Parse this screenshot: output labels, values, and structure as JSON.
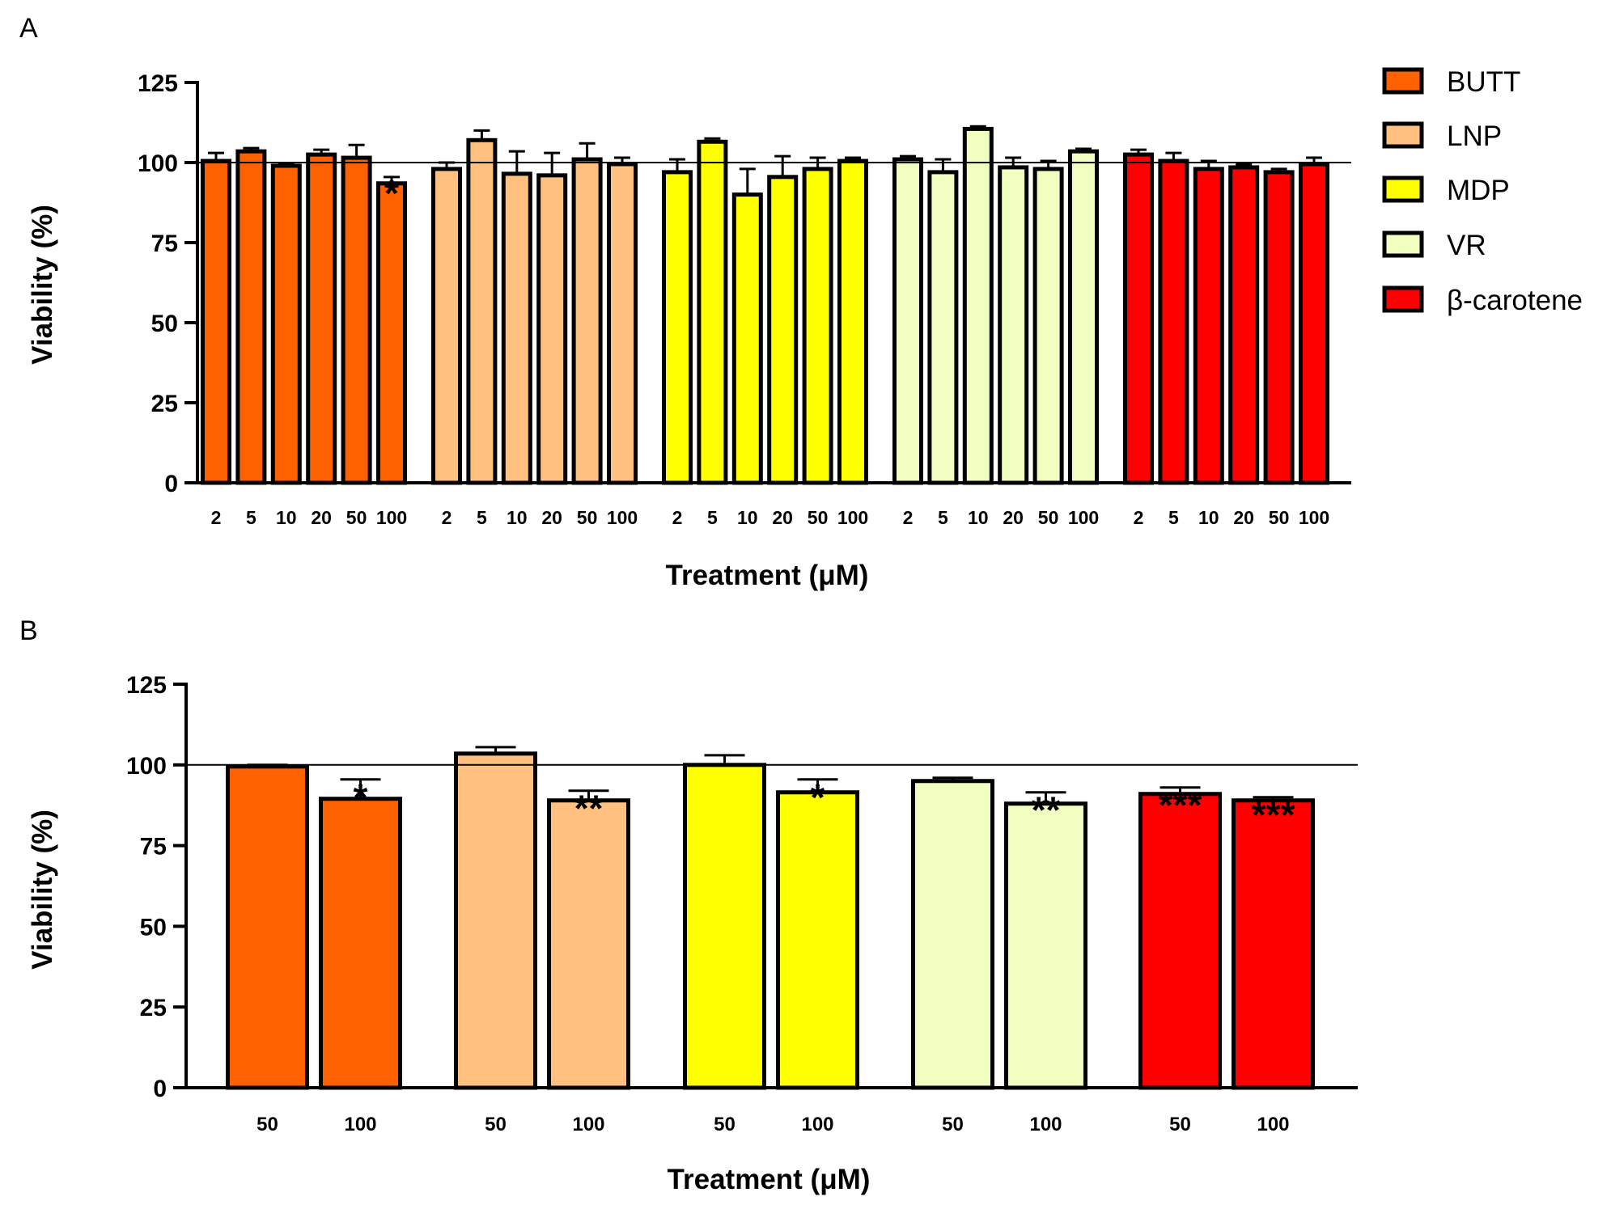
{
  "panels": {
    "A": {
      "label": "A"
    },
    "B": {
      "label": "B"
    }
  },
  "legend": [
    {
      "name": "BUTT",
      "color": "#ff6000"
    },
    {
      "name": "LNP",
      "color": "#ffc080"
    },
    {
      "name": "MDP",
      "color": "#ffff00"
    },
    {
      "name": "VR",
      "color": "#f0ffc0"
    },
    {
      "name": "β-carotene",
      "color": "#ff0000"
    }
  ],
  "chart_data": [
    {
      "panel": "A",
      "type": "bar",
      "ylabel": "Viability (%)",
      "xlabel": "Treatment (μM)",
      "ylim": [
        0,
        125
      ],
      "yticks": [
        "0",
        "25",
        "50",
        "75",
        "100",
        "125"
      ],
      "reference_line": 100,
      "categories": [
        "2",
        "5",
        "10",
        "20",
        "50",
        "100"
      ],
      "series": [
        {
          "name": "BUTT",
          "color": "#ff6000",
          "values": [
            100.5,
            103.5,
            99,
            102.5,
            101.5,
            93.5
          ],
          "errors": [
            2.5,
            1,
            0.8,
            1.5,
            4,
            2
          ],
          "sig": [
            "",
            "",
            "",
            "",
            "",
            "*"
          ]
        },
        {
          "name": "LNP",
          "color": "#ffc080",
          "values": [
            98,
            107,
            96.5,
            96,
            101,
            99.5
          ],
          "errors": [
            2,
            3,
            7,
            7,
            5,
            2
          ],
          "sig": [
            "",
            "",
            "",
            "",
            "",
            ""
          ]
        },
        {
          "name": "MDP",
          "color": "#ffff00",
          "values": [
            97,
            106.5,
            90,
            95.5,
            98,
            100.5
          ],
          "errors": [
            4,
            1,
            8,
            6.5,
            3.5,
            1
          ],
          "sig": [
            "",
            "",
            "",
            "",
            "",
            ""
          ]
        },
        {
          "name": "VR",
          "color": "#f0ffc0",
          "values": [
            101,
            97,
            110.5,
            98.5,
            98,
            103.5
          ],
          "errors": [
            1,
            4,
            0.8,
            3,
            2.5,
            0.8
          ],
          "sig": [
            "",
            "",
            "",
            "",
            "",
            ""
          ]
        },
        {
          "name": "β-carotene",
          "color": "#ff0000",
          "values": [
            102.5,
            100.5,
            98,
            98.5,
            97,
            99.5
          ],
          "errors": [
            1.5,
            2.5,
            2.5,
            1,
            1,
            2
          ],
          "sig": [
            "",
            "",
            "",
            "",
            "",
            ""
          ]
        }
      ]
    },
    {
      "panel": "B",
      "type": "bar",
      "ylabel": "Viability (%)",
      "xlabel": "Treatment (μM)",
      "ylim": [
        0,
        125
      ],
      "yticks": [
        "0",
        "25",
        "50",
        "75",
        "100",
        "125"
      ],
      "reference_line": 100,
      "categories": [
        "50",
        "100"
      ],
      "series": [
        {
          "name": "BUTT",
          "color": "#ff6000",
          "values": [
            99.5,
            89.5
          ],
          "errors": [
            0.5,
            6
          ],
          "sig": [
            "",
            "*"
          ]
        },
        {
          "name": "LNP",
          "color": "#ffc080",
          "values": [
            103.5,
            89
          ],
          "errors": [
            2,
            3
          ],
          "sig": [
            "",
            "**"
          ]
        },
        {
          "name": "MDP",
          "color": "#ffff00",
          "values": [
            100,
            91.5
          ],
          "errors": [
            3,
            4
          ],
          "sig": [
            "",
            "*"
          ]
        },
        {
          "name": "VR",
          "color": "#f0ffc0",
          "values": [
            95,
            88
          ],
          "errors": [
            1,
            3.5
          ],
          "sig": [
            "",
            "**"
          ]
        },
        {
          "name": "β-carotene",
          "color": "#ff0000",
          "values": [
            91,
            89
          ],
          "errors": [
            2,
            1
          ],
          "sig": [
            "***",
            "***"
          ]
        }
      ]
    }
  ]
}
